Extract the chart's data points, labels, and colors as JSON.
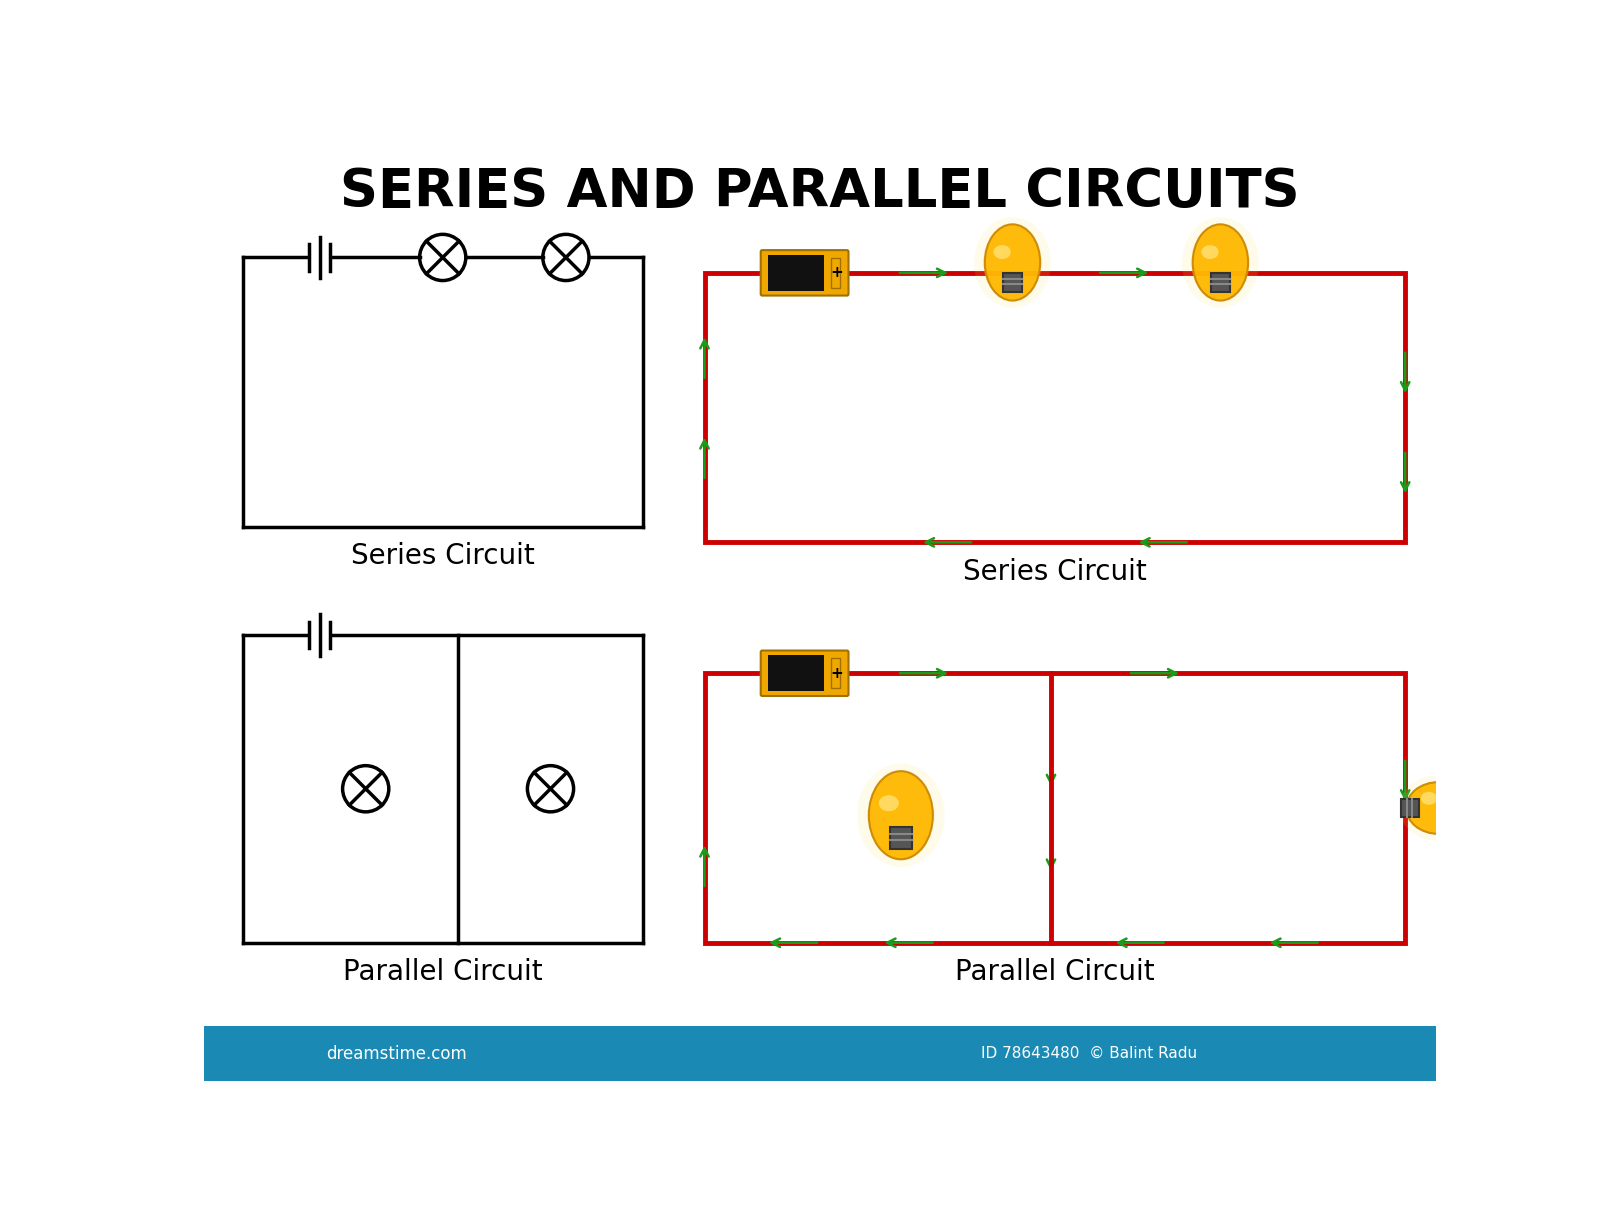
{
  "title": "SERIES AND PARALLEL CIRCUITS",
  "title_fontsize": 38,
  "bg_color": "#ffffff",
  "circuit_color": "#000000",
  "red_color": "#cc0000",
  "green_color": "#1a9c1a",
  "label_series": "Series Circuit",
  "label_parallel": "Parallel Circuit",
  "label_fontsize": 20,
  "bottom_bar_color": "#1a8ab5",
  "bottom_text": "dreamstime.com",
  "bottom_id": "ID 78643480  © Balint Radu",
  "lw_circuit": 2.5
}
